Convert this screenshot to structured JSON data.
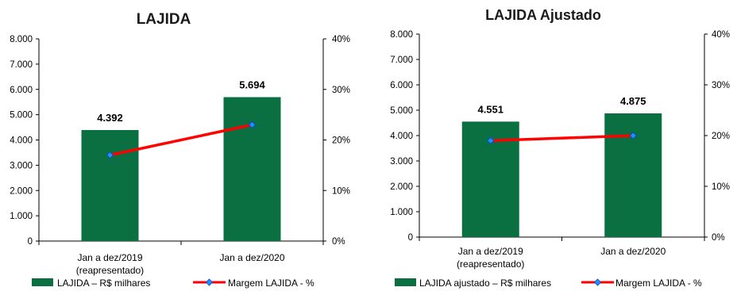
{
  "colors": {
    "bar": "#0a7042",
    "line": "#ff0000",
    "marker": "#1e90ff",
    "axis": "#000000"
  },
  "chart_data": [
    {
      "type": "bar",
      "title": "LAJIDA",
      "categories": [
        [
          "Jan a dez/2019",
          "(reapresentado)"
        ],
        [
          "Jan a dez/2020"
        ]
      ],
      "values": [
        4392,
        5694
      ],
      "data_labels": [
        "4.392",
        "5.694"
      ],
      "ylim": [
        0,
        8000
      ],
      "y_ticks": [
        "0",
        "1.000",
        "2.000",
        "3.000",
        "4.000",
        "5.000",
        "6.000",
        "7.000",
        "8.000"
      ],
      "y2lim": [
        0,
        40
      ],
      "y2_ticks": [
        "0%",
        "10%",
        "20%",
        "30%",
        "40%"
      ],
      "series": [
        {
          "name": "LAJIDA – R$ milhares",
          "type": "bar",
          "values": [
            4392,
            5694
          ]
        },
        {
          "name": "Margem LAJIDA - %",
          "type": "line",
          "axis": "secondary",
          "values": [
            17,
            23
          ]
        }
      ],
      "legend_position": "bottom"
    },
    {
      "type": "bar",
      "title": "LAJIDA Ajustado",
      "categories": [
        [
          "Jan a dez/2019",
          "(reapresentado)"
        ],
        [
          "Jan a dez/2020"
        ]
      ],
      "values": [
        4551,
        4875
      ],
      "data_labels": [
        "4.551",
        "4.875"
      ],
      "ylim": [
        0,
        8000
      ],
      "y_ticks": [
        "0",
        "1.000",
        "2.000",
        "3.000",
        "4.000",
        "5.000",
        "6.000",
        "7.000",
        "8.000"
      ],
      "y2lim": [
        0,
        40
      ],
      "y2_ticks": [
        "0%",
        "10%",
        "20%",
        "30%",
        "40%"
      ],
      "series": [
        {
          "name": "LAJIDA ajustado  – R$ milhares",
          "type": "bar",
          "values": [
            4551,
            4875
          ]
        },
        {
          "name": "Margem LAJIDA - %",
          "type": "line",
          "axis": "secondary",
          "values": [
            19,
            20
          ]
        }
      ],
      "legend_position": "bottom"
    }
  ]
}
